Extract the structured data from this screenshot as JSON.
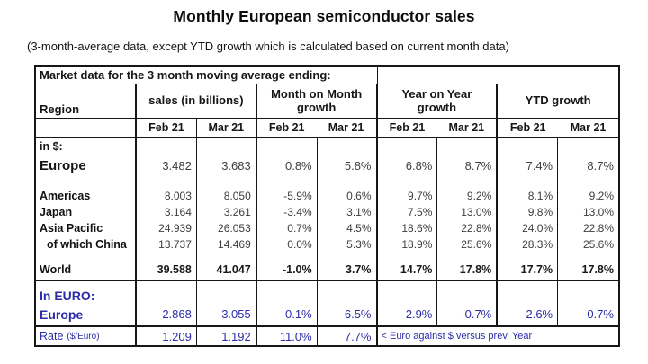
{
  "page": {
    "title": "Monthly European semiconductor sales",
    "subtitle": "(3-month-average data, except YTD growth which is calculated based on current month data)"
  },
  "table": {
    "caption": "Market data for the 3 month moving average ending:",
    "region_header": "Region",
    "group_headers": {
      "sales": "sales (in billions)",
      "mom": "Month on Month growth",
      "yoy": "Year on Year growth",
      "ytd": "YTD growth"
    },
    "month_cols": {
      "feb": "Feb 21",
      "mar": "Mar 21"
    },
    "dollar_section": {
      "label": "in $:",
      "rows": [
        {
          "region": "Europe",
          "values": [
            "3.482",
            "3.683",
            "0.8%",
            "5.8%",
            "6.8%",
            "8.7%",
            "7.4%",
            "8.7%"
          ]
        },
        {
          "region": "Americas",
          "values": [
            "8.003",
            "8.050",
            "-5.9%",
            "0.6%",
            "9.7%",
            "9.2%",
            "8.1%",
            "9.2%"
          ]
        },
        {
          "region": "Japan",
          "values": [
            "3.164",
            "3.261",
            "-3.4%",
            "3.1%",
            "7.5%",
            "13.0%",
            "9.8%",
            "13.0%"
          ]
        },
        {
          "region": "Asia Pacific",
          "values": [
            "24.939",
            "26.053",
            "0.7%",
            "4.5%",
            "18.6%",
            "22.8%",
            "24.0%",
            "22.8%"
          ]
        },
        {
          "region": "of which China",
          "values": [
            "13.737",
            "14.469",
            "0.0%",
            "5.3%",
            "18.9%",
            "25.6%",
            "28.3%",
            "25.6%"
          ]
        },
        {
          "region": "World",
          "values": [
            "39.588",
            "41.047",
            "-1.0%",
            "3.7%",
            "14.7%",
            "17.8%",
            "17.7%",
            "17.8%"
          ]
        }
      ]
    },
    "euro_section": {
      "label": "In EURO:",
      "row": {
        "region": "Europe",
        "values": [
          "2.868",
          "3.055",
          "0.1%",
          "6.5%",
          "-2.9%",
          "-0.7%",
          "-2.6%",
          "-0.7%"
        ]
      }
    },
    "rate_row": {
      "label": "Rate",
      "unit": "($/Euro)",
      "values": [
        "1.209",
        "1.192",
        "11.0%",
        "7.7%"
      ],
      "note": "< Euro against $ versus prev. Year"
    }
  },
  "colors": {
    "accent_blue": "#2c2ca6",
    "value_text": "#3e3e3e",
    "border_dark": "#161616"
  }
}
